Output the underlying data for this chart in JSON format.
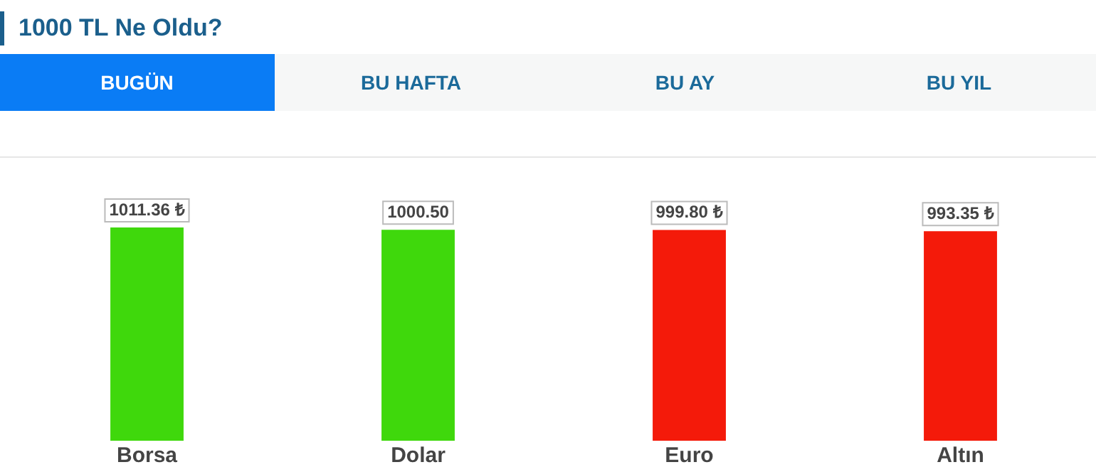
{
  "chart_data": {
    "type": "bar",
    "title": "1000 TL Ne Oldu?",
    "annotations": [
      "BUGÜN",
      "BU HAFTA",
      "BU AY",
      "BU YIL"
    ],
    "categories": [
      "Borsa",
      "Dolar",
      "Euro",
      "Altın"
    ],
    "values": [
      1011.36,
      1000.5,
      999.8,
      993.35
    ],
    "colors": [
      "#3fd80c",
      "#3fd80c",
      "#f41a0a",
      "#f41a0a"
    ],
    "value_labels": [
      "1011.36 ₺",
      "1000.50",
      "999.80 ₺",
      "993.35 ₺"
    ],
    "tick_labels": "x",
    "grid": false,
    "legend": false
  }
}
